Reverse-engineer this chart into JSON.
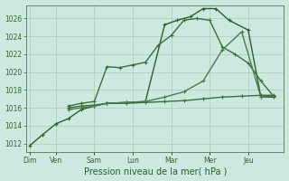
{
  "background_color": "#cce8e0",
  "grid_color": "#aaccbb",
  "x_labels": [
    "Dim",
    "Ven",
    "Sam",
    "Lun",
    "Mar",
    "Mer",
    "Jeu"
  ],
  "xlabel": "Pression niveau de la mer( hPa )",
  "ylim": [
    1011,
    1027.5
  ],
  "yticks": [
    1012,
    1014,
    1016,
    1018,
    1020,
    1022,
    1024,
    1026
  ],
  "lines": [
    {
      "x": [
        0,
        0.33,
        0.67,
        1.0,
        1.33,
        1.67,
        2.0,
        2.5,
        3.0,
        3.5,
        3.83,
        4.17,
        4.5,
        4.83,
        5.17,
        5.67,
        6.0,
        6.33
      ],
      "y": [
        1011.8,
        1013.0,
        1014.2,
        1014.8,
        1015.8,
        1016.2,
        1016.5,
        1016.6,
        1016.7,
        1025.3,
        1025.8,
        1026.2,
        1027.1,
        1027.1,
        1025.8,
        1024.7,
        1017.2,
        1017.2
      ],
      "color": "#2a5e2a",
      "lw": 1.0
    },
    {
      "x": [
        1.0,
        1.33,
        1.67,
        2.0,
        2.33,
        2.67,
        3.0,
        3.33,
        3.67,
        4.0,
        4.33,
        4.67,
        5.0,
        5.33,
        5.67,
        6.0,
        6.33
      ],
      "y": [
        1016.2,
        1016.5,
        1016.7,
        1020.6,
        1020.5,
        1020.8,
        1021.1,
        1023.0,
        1024.1,
        1025.8,
        1026.0,
        1025.8,
        1022.8,
        1022.0,
        1021.0,
        1019.0,
        1017.3
      ],
      "color": "#3a6e3a",
      "lw": 1.0
    },
    {
      "x": [
        1.0,
        1.33,
        1.67,
        2.0,
        2.5,
        3.0,
        3.5,
        4.0,
        4.5,
        5.0,
        5.5,
        6.0,
        6.33
      ],
      "y": [
        1016.0,
        1016.2,
        1016.3,
        1016.5,
        1016.5,
        1016.6,
        1016.7,
        1016.8,
        1017.0,
        1017.2,
        1017.3,
        1017.4,
        1017.4
      ],
      "color": "#3a6e3a",
      "lw": 1.0
    },
    {
      "x": [
        1.0,
        1.33,
        1.67,
        2.0,
        2.5,
        3.0,
        3.5,
        4.0,
        4.5,
        5.0,
        5.5,
        6.0,
        6.33
      ],
      "y": [
        1015.8,
        1016.0,
        1016.2,
        1016.5,
        1016.6,
        1016.7,
        1017.2,
        1017.8,
        1019.0,
        1022.5,
        1024.5,
        1017.2,
        1017.3
      ],
      "color": "#4a7a4a",
      "lw": 1.0
    }
  ],
  "x_tick_positions": [
    0,
    0.67,
    1.67,
    2.67,
    3.67,
    4.67,
    5.67
  ],
  "axis_color": "#336633",
  "tick_label_color": "#336633",
  "xlabel_color": "#2a5e2a",
  "marker": "+"
}
